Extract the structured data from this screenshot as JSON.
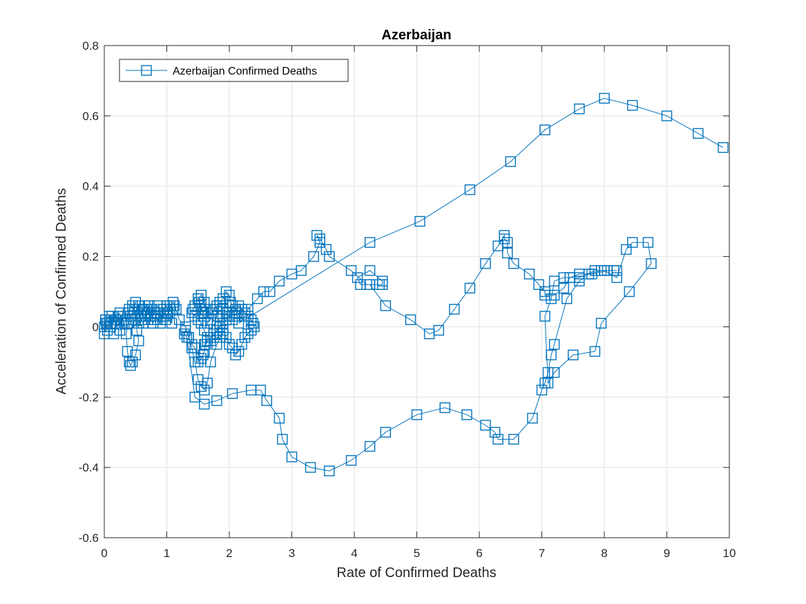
{
  "chart_data": {
    "type": "line",
    "title": "Azerbaijan",
    "xlabel": "Rate of Confirmed Deaths",
    "ylabel": "Acceleration of Confirmed Deaths",
    "xlim": [
      0,
      10
    ],
    "ylim": [
      -0.6,
      0.8
    ],
    "xticks": [
      "0",
      "1",
      "2",
      "3",
      "4",
      "5",
      "6",
      "7",
      "8",
      "9",
      "10"
    ],
    "yticks": [
      "-0.6",
      "-0.4",
      "-0.2",
      "0",
      "0.2",
      "0.4",
      "0.6",
      "0.8"
    ],
    "grid": true,
    "legend_position": "top-left",
    "series": [
      {
        "name": "Azerbaijan Confirmed Deaths",
        "color": "#0072BD",
        "marker": "square",
        "x": [
          0,
          0.02,
          0,
          0.03,
          0.05,
          0.02,
          0.08,
          0.1,
          0.05,
          0.12,
          0.15,
          0.1,
          0.18,
          0.2,
          0.15,
          0.22,
          0.25,
          0.2,
          0.28,
          0.3,
          0.25,
          0.32,
          0.35,
          0.38,
          0.4,
          0.45,
          0.5,
          0.48,
          0.42,
          0.38,
          0.35,
          0.37,
          0.4,
          0.42,
          0.45,
          0.5,
          0.55,
          0.52,
          0.5,
          0.48,
          0.55,
          0.6,
          0.58,
          0.62,
          0.65,
          0.7,
          0.72,
          0.68,
          0.75,
          0.78,
          0.8,
          0.82,
          0.85,
          0.9,
          0.95,
          1,
          1.02,
          0.98,
          1.05,
          1.1,
          1.08,
          1,
          0.95,
          0.9,
          0.85,
          0.8,
          0.75,
          0.7,
          0.65,
          0.62,
          0.6,
          0.58,
          0.55,
          0.6,
          0.65,
          0.7,
          0.75,
          0.8,
          0.85,
          0.9,
          0.95,
          1,
          1.05,
          1.1,
          1.15,
          1.12,
          1.2,
          1.3,
          1.35,
          1.4,
          1.45,
          1.5,
          1.55,
          1.58,
          1.6,
          1.62,
          1.65,
          1.6,
          1.55,
          1.5,
          1.45,
          1.4,
          1.42,
          1.45,
          1.5,
          1.55,
          1.6,
          1.62,
          1.58,
          1.55,
          1.52,
          1.5,
          1.55,
          1.6,
          1.65,
          1.7,
          1.72,
          1.75,
          1.8,
          1.85,
          1.9,
          1.95,
          2,
          2.02,
          2.05,
          2.1,
          2.12,
          2.08,
          2.05,
          2,
          1.95,
          1.9,
          1.85,
          1.8,
          1.82,
          1.85,
          1.9,
          1.95,
          2,
          2.05,
          2.1,
          2.15,
          2.2,
          2.25,
          2.3,
          2.35,
          2.4,
          2.38,
          2.35,
          2.3,
          2.25,
          2.2,
          2.15,
          2.1,
          2.05,
          2,
          1.95,
          1.9,
          1.85,
          1.8,
          1.75,
          1.7,
          1.65,
          1.6,
          1.7,
          1.8,
          1.9,
          1.85,
          1.8,
          1.7,
          1.65,
          1.6,
          1.55,
          1.5,
          1.45,
          1.4,
          1.35,
          1.3,
          1.28,
          1.32,
          1.45,
          1.6,
          1.8,
          2.05,
          2.35,
          2.5,
          2.6,
          2.8,
          2.85,
          3,
          3.3,
          3.6,
          3.95,
          4.25,
          4.5,
          5,
          5.45,
          5.8,
          6.1,
          6.25,
          6.3,
          6.55,
          6.85,
          7,
          7.05,
          7.1,
          7.15,
          7.2,
          7.4,
          7.6,
          7.75,
          7.95,
          8.15,
          8.2,
          8.05,
          7.8,
          7.6,
          7.45,
          7.35,
          7.2,
          7.15,
          7.05,
          7.1,
          7.2,
          7.5,
          7.85,
          7.95,
          8.4,
          8.75,
          8.7,
          8.45,
          8.35,
          8.2,
          8.0,
          7.85,
          7.6,
          7.45,
          7.35,
          7.2,
          7.05,
          7.05,
          6.95,
          6.8,
          6.55,
          6.45,
          6.45,
          6.4,
          6.4,
          6.3,
          6.1,
          5.85,
          5.6,
          5.35,
          5.2,
          4.9,
          4.5,
          4.25,
          4.1,
          4.05,
          4.25,
          4.45,
          4.45,
          4.4,
          4.2,
          3.95,
          3.6,
          3.55,
          3.45,
          3.4,
          3.45,
          3.35,
          3.15,
          3,
          2.8,
          2.65,
          2.55,
          2.45,
          2.3,
          2.25,
          2.15,
          4.25,
          5.05,
          5.85,
          6.5,
          7.05,
          7.6,
          8,
          8.45,
          9,
          9.5,
          9.9
        ],
        "y": [
          0,
          0.02,
          -0.02,
          0.01,
          -0.01,
          0.02,
          0.03,
          0.02,
          0.01,
          0.03,
          0.02,
          0,
          0.02,
          0.01,
          -0.02,
          0.03,
          0.04,
          0.02,
          0.01,
          0.03,
          -0.01,
          0.01,
          0.02,
          0.04,
          0.05,
          0.06,
          0.07,
          0.05,
          0.03,
          0.01,
          -0.02,
          -0.07,
          -0.1,
          -0.11,
          -0.1,
          -0.08,
          -0.04,
          -0.01,
          0.02,
          0.04,
          0.06,
          0.05,
          0.03,
          0.01,
          0.02,
          0.04,
          0.06,
          0.05,
          0.03,
          0.01,
          0.02,
          0.03,
          0.04,
          0.02,
          0.05,
          0.06,
          0.04,
          0.02,
          0.05,
          0.05,
          0.01,
          0.03,
          0.04,
          0.05,
          0.06,
          0.04,
          0.03,
          0.04,
          0.06,
          0.05,
          0.02,
          0.03,
          0.01,
          0.02,
          0.03,
          0.04,
          0.05,
          0.04,
          0.02,
          0.01,
          0.03,
          0.05,
          0.06,
          0.07,
          0.05,
          0.06,
          0.02,
          0,
          -0.03,
          -0.05,
          -0.06,
          -0.1,
          -0.09,
          -0.08,
          -0.07,
          -0.05,
          -0.03,
          -0.01,
          0.01,
          0.02,
          0.03,
          0.04,
          0.05,
          0.06,
          0.08,
          0.09,
          0.07,
          0.05,
          0.04,
          0.06,
          0.07,
          0.08,
          0.05,
          0.03,
          0.01,
          0.02,
          0.04,
          0.05,
          0.06,
          0.07,
          0.08,
          0.1,
          0.09,
          0.07,
          0.06,
          0.05,
          0.04,
          0.03,
          0.02,
          0.03,
          0.04,
          0.05,
          0.06,
          0.05,
          0.03,
          0.01,
          -0.01,
          -0.03,
          -0.05,
          -0.06,
          -0.08,
          -0.07,
          -0.05,
          -0.03,
          -0.02,
          -0.01,
          0,
          0.01,
          0.02,
          0.03,
          0.04,
          0.05,
          0.06,
          0.05,
          0.04,
          0.03,
          0.02,
          0.01,
          0,
          -0.01,
          -0.02,
          -0.03,
          -0.04,
          -0.05,
          -0.04,
          -0.03,
          -0.02,
          -0.03,
          -0.05,
          -0.1,
          -0.16,
          -0.18,
          -0.17,
          -0.15,
          -0.1,
          -0.06,
          -0.03,
          -0.01,
          -0.02,
          -0.03,
          -0.2,
          -0.22,
          -0.21,
          -0.19,
          -0.18,
          -0.18,
          -0.21,
          -0.26,
          -0.32,
          -0.37,
          -0.4,
          -0.41,
          -0.38,
          -0.34,
          -0.3,
          -0.25,
          -0.23,
          -0.25,
          -0.28,
          -0.3,
          -0.32,
          -0.32,
          -0.26,
          -0.18,
          -0.16,
          -0.13,
          -0.08,
          -0.05,
          0.08,
          0.13,
          0.15,
          0.16,
          0.16,
          0.16,
          0.16,
          0.15,
          0.15,
          0.14,
          0.14,
          0.13,
          0.08,
          0.03,
          -0.16,
          -0.13,
          -0.08,
          -0.07,
          0.01,
          0.1,
          0.18,
          0.24,
          0.24,
          0.22,
          0.14,
          0.16,
          0.16,
          0.14,
          0.14,
          0.11,
          0.09,
          0.09,
          0.1,
          0.12,
          0.15,
          0.18,
          0.21,
          0.24,
          0.25,
          0.26,
          0.23,
          0.18,
          0.11,
          0.05,
          -0.01,
          -0.02,
          0.02,
          0.06,
          0.12,
          0.12,
          0.14,
          0.16,
          0.13,
          0.12,
          0.12,
          0.12,
          0.16,
          0.2,
          0.22,
          0.25,
          0.26,
          0.24,
          0.2,
          0.16,
          0.15,
          0.13,
          0.1,
          0.1,
          0.08,
          0.05,
          0.03,
          0.01,
          0.24,
          0.3,
          0.39,
          0.47,
          0.56,
          0.62,
          0.65,
          0.63,
          0.6,
          0.55,
          0.51
        ]
      }
    ]
  }
}
